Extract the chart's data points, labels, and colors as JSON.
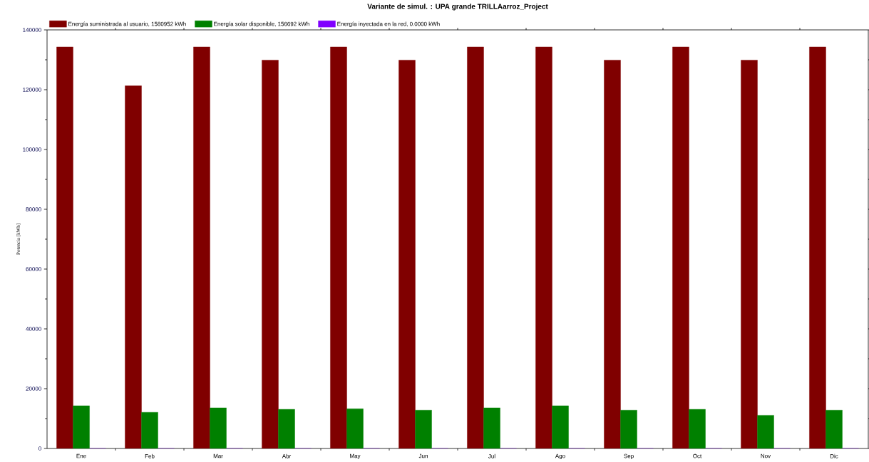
{
  "chart_data": {
    "type": "bar",
    "title": "Variante de simul. : UPA grande TRILLAarroz_Project",
    "ylabel": "Potencia  [kWh]",
    "categories": [
      "Ene",
      "Feb",
      "Mar",
      "Abr",
      "May",
      "Jun",
      "Jul",
      "Ago",
      "Sep",
      "Oct",
      "Nov",
      "Dic"
    ],
    "series": [
      {
        "name": "Energía suministrada al usuario,  1580952 kWh",
        "color": "#800000",
        "values": [
          134300,
          121300,
          134300,
          129900,
          134300,
          129900,
          134300,
          134300,
          129900,
          134300,
          129900,
          134300
        ]
      },
      {
        "name": "Energía solar disponible,  156692 kWh",
        "color": "#008000",
        "values": [
          14300,
          12100,
          13600,
          13100,
          13300,
          12800,
          13600,
          14300,
          12800,
          13100,
          11100,
          12800
        ]
      },
      {
        "name": "Energía inyectada en la red,  0.0000 kWh",
        "color": "#8000ff",
        "values": [
          0,
          0,
          0,
          0,
          0,
          0,
          0,
          0,
          0,
          0,
          0,
          0
        ]
      }
    ],
    "ylim": [
      0,
      140000
    ],
    "yticks": [
      0,
      20000,
      40000,
      60000,
      80000,
      100000,
      120000,
      140000
    ],
    "grid": false,
    "legend": "top left"
  }
}
